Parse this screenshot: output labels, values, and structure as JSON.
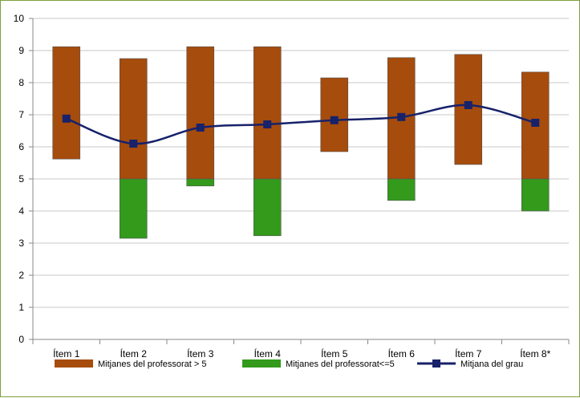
{
  "chart_data": {
    "type": "bar",
    "title": "",
    "xlabel": "",
    "ylabel": "",
    "ylim": [
      0,
      10
    ],
    "yticks": [
      0,
      1,
      2,
      3,
      4,
      5,
      6,
      7,
      8,
      9,
      10
    ],
    "grid": "horizontal",
    "legend_position": "bottom",
    "categories": [
      "Ítem 1",
      "Ítem 2",
      "Ítem 3",
      "Ítem 4",
      "Ítem 5",
      "Ítem 6",
      "Ítem 7",
      "Ítem 8*"
    ],
    "series": [
      {
        "name": "Mitjanes del professorat > 5",
        "kind": "floating-bar",
        "color": "#a64c0c",
        "low": [
          5.62,
          5.0,
          5.0,
          5.0,
          5.85,
          5.0,
          5.45,
          5.0
        ],
        "high": [
          9.12,
          8.75,
          9.12,
          9.12,
          8.15,
          8.78,
          8.88,
          8.33
        ]
      },
      {
        "name": "Mitjanes del professorat<=5",
        "kind": "floating-bar",
        "color": "#339a1c",
        "low": [
          null,
          3.15,
          4.78,
          3.23,
          null,
          4.33,
          null,
          4.0
        ],
        "high": [
          null,
          5.0,
          5.0,
          5.0,
          null,
          5.0,
          null,
          5.0
        ]
      },
      {
        "name": "Mitjana del grau",
        "kind": "line",
        "color": "#17226b",
        "values": [
          6.88,
          6.1,
          6.6,
          6.7,
          6.83,
          6.93,
          7.3,
          6.75
        ]
      }
    ]
  }
}
